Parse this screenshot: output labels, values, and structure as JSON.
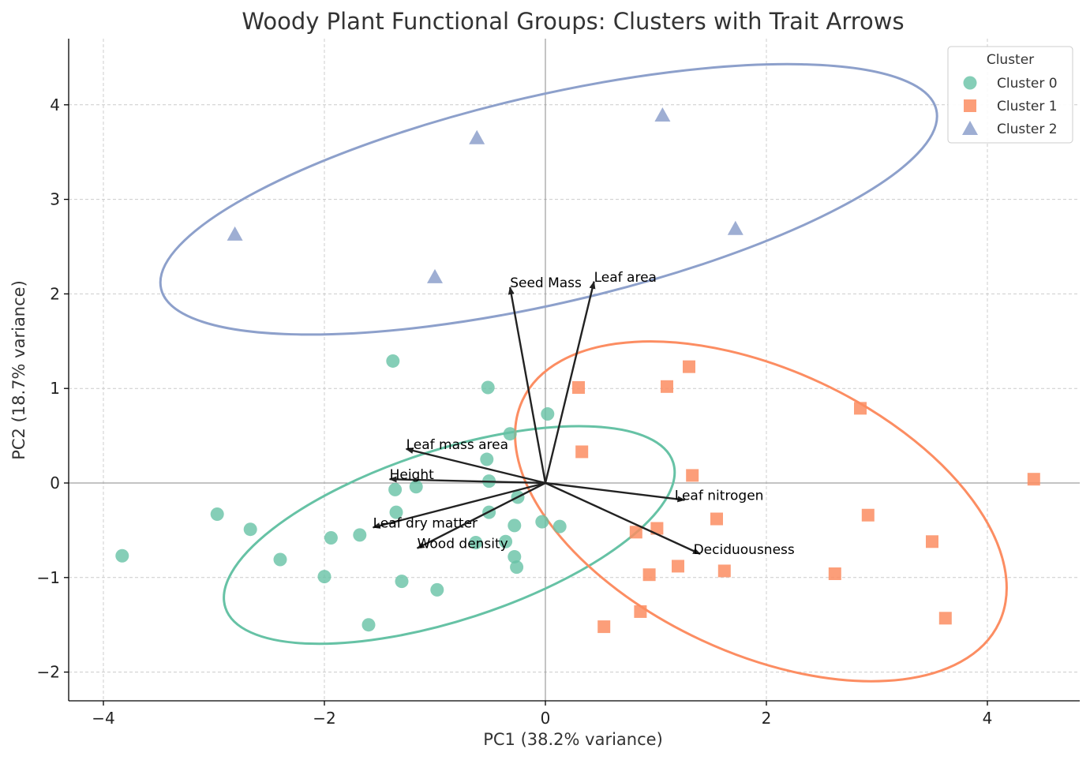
{
  "chart_data": {
    "type": "scatter",
    "title": "Woody Plant Functional Groups: Clusters with Trait Arrows",
    "xlabel": "PC1 (38.2% variance)",
    "ylabel": "PC2 (18.7% variance)",
    "xlim": [
      -4.3,
      4.8
    ],
    "ylim": [
      -2.3,
      4.7
    ],
    "xticks": [
      -4,
      -2,
      0,
      2,
      4
    ],
    "yticks": [
      -2,
      -1,
      0,
      1,
      2,
      3,
      4
    ],
    "xtick_labels": [
      "−4",
      "−2",
      "0",
      "2",
      "4"
    ],
    "ytick_labels": [
      "−2",
      "−1",
      "0",
      "1",
      "2",
      "3",
      "4"
    ],
    "grid": true,
    "legend": {
      "title": "Cluster",
      "placement": "top-right",
      "entries": [
        "Cluster 0",
        "Cluster 1",
        "Cluster 2"
      ]
    },
    "series": [
      {
        "name": "Cluster 0",
        "marker": "circle",
        "color": "#66c2a5",
        "points": [
          [
            -3.83,
            -0.77
          ],
          [
            -2.97,
            -0.33
          ],
          [
            -2.67,
            -0.49
          ],
          [
            -2.4,
            -0.81
          ],
          [
            -2.0,
            -0.99
          ],
          [
            -1.94,
            -0.58
          ],
          [
            -1.68,
            -0.55
          ],
          [
            -1.6,
            -1.5
          ],
          [
            -1.38,
            1.29
          ],
          [
            -1.36,
            -0.07
          ],
          [
            -1.35,
            -0.31
          ],
          [
            -1.3,
            -1.04
          ],
          [
            -1.17,
            -0.04
          ],
          [
            -0.98,
            -1.13
          ],
          [
            -0.63,
            -0.63
          ],
          [
            -0.53,
            0.25
          ],
          [
            -0.52,
            1.01
          ],
          [
            -0.51,
            0.02
          ],
          [
            -0.51,
            -0.31
          ],
          [
            -0.36,
            -0.62
          ],
          [
            -0.32,
            0.52
          ],
          [
            -0.28,
            -0.45
          ],
          [
            -0.28,
            -0.78
          ],
          [
            -0.26,
            -0.89
          ],
          [
            -0.25,
            -0.15
          ],
          [
            -0.03,
            -0.41
          ],
          [
            0.02,
            0.73
          ],
          [
            0.13,
            -0.46
          ]
        ]
      },
      {
        "name": "Cluster 1",
        "marker": "square",
        "color": "#fc8d62",
        "points": [
          [
            0.3,
            1.01
          ],
          [
            0.33,
            0.33
          ],
          [
            0.53,
            -1.52
          ],
          [
            0.82,
            -0.52
          ],
          [
            0.86,
            -1.36
          ],
          [
            0.94,
            -0.97
          ],
          [
            1.01,
            -0.48
          ],
          [
            1.1,
            1.02
          ],
          [
            1.2,
            -0.88
          ],
          [
            1.3,
            1.23
          ],
          [
            1.33,
            0.08
          ],
          [
            1.55,
            -0.38
          ],
          [
            1.62,
            -0.93
          ],
          [
            2.62,
            -0.96
          ],
          [
            2.85,
            0.79
          ],
          [
            2.92,
            -0.34
          ],
          [
            3.5,
            -0.62
          ],
          [
            3.62,
            -1.43
          ],
          [
            4.42,
            0.04
          ]
        ]
      },
      {
        "name": "Cluster 2",
        "marker": "triangle",
        "color": "#8da0cb",
        "points": [
          [
            -2.81,
            2.63
          ],
          [
            -1.0,
            2.18
          ],
          [
            -0.62,
            3.65
          ],
          [
            1.06,
            3.89
          ],
          [
            1.72,
            2.69
          ]
        ]
      }
    ],
    "ellipses": [
      {
        "cluster": "Cluster 0",
        "color": "#66c2a5",
        "center": [
          -0.87,
          -0.55
        ],
        "rx": 2.13,
        "ry": 0.9,
        "angle_deg": 18
      },
      {
        "cluster": "Cluster 1",
        "color": "#fc8d62",
        "center": [
          1.95,
          -0.3
        ],
        "rx": 2.38,
        "ry": 1.5,
        "angle_deg": -25
      },
      {
        "cluster": "Cluster 2",
        "color": "#8da0cb",
        "center": [
          0.03,
          3.0
        ],
        "rx": 3.6,
        "ry": 1.1,
        "angle_deg": 13
      }
    ],
    "trait_arrows": [
      {
        "name": "Seed Mass",
        "end": [
          -0.32,
          2.07
        ],
        "label_at": [
          -0.32,
          2.07
        ]
      },
      {
        "name": "Leaf area",
        "end": [
          0.44,
          2.13
        ],
        "label_at": [
          0.44,
          2.13
        ]
      },
      {
        "name": "Leaf mass area",
        "end": [
          -1.26,
          0.36
        ],
        "label_at": [
          -1.26,
          0.36
        ]
      },
      {
        "name": "Height",
        "end": [
          -1.41,
          0.04
        ],
        "label_at": [
          -1.41,
          0.04
        ]
      },
      {
        "name": "Leaf nitrogen",
        "end": [
          1.26,
          -0.18
        ],
        "label_at": [
          1.17,
          -0.18
        ]
      },
      {
        "name": "Leaf dry matter",
        "end": [
          -1.56,
          -0.47
        ],
        "label_at": [
          -1.56,
          -0.47
        ]
      },
      {
        "name": "Wood density",
        "end": [
          -1.16,
          -0.69
        ],
        "label_at": [
          -1.16,
          -0.69
        ]
      },
      {
        "name": "Deciduousness",
        "end": [
          1.4,
          -0.75
        ],
        "label_at": [
          1.34,
          -0.75
        ]
      }
    ],
    "colors": {
      "arrow": "#222222",
      "axis": "#000000",
      "grid": "#cccccc",
      "zero_line": "#888888"
    }
  }
}
